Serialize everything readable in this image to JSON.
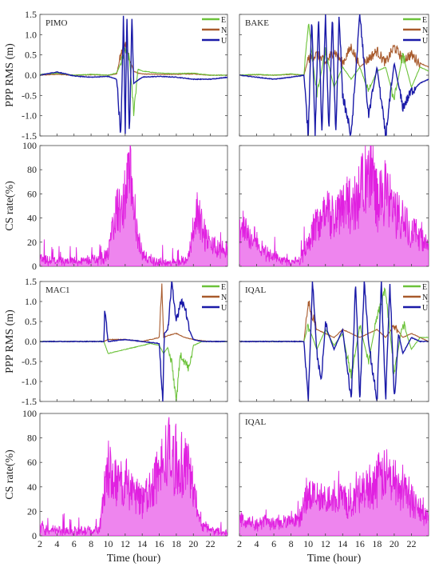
{
  "colors": {
    "E": "#6cc23a",
    "N": "#a85a2c",
    "U": "#1a1aa8",
    "CS": "#e020e0"
  },
  "labels": {
    "ppp_ylabel": "PPP RMS (m)",
    "cs_ylabel": "CS rate(%)",
    "xlabel": "Time (hour)"
  },
  "x_ticks": [
    "2",
    "4",
    "6",
    "8",
    "10",
    "12",
    "14",
    "16",
    "18",
    "20",
    "22"
  ],
  "ppp_ticks": [
    "1.5",
    "1.0",
    "0.5",
    "0.0",
    "-0.5",
    "-1.0",
    "-1.5"
  ],
  "cs_ticks": [
    "100",
    "80",
    "60",
    "40",
    "20",
    "0"
  ],
  "chart_data": [
    {
      "type": "line",
      "station": "PIMO",
      "ylabel": "PPP RMS (m)",
      "xlabel": "",
      "xlim": [
        2,
        24
      ],
      "ylim": [
        -1.5,
        1.5
      ],
      "legend": "top-right",
      "grid": false,
      "series": [
        {
          "name": "E",
          "x": [
            2,
            4,
            6,
            8,
            10,
            11,
            11.5,
            12,
            12.5,
            13,
            13.5,
            14,
            16,
            18,
            20,
            22,
            24
          ],
          "values": [
            0.02,
            0.05,
            0.0,
            0.02,
            0.0,
            0.05,
            0.3,
            0.6,
            0.4,
            -0.9,
            0.15,
            0.1,
            0.05,
            0.04,
            0.05,
            0.0,
            0.0
          ]
        },
        {
          "name": "N",
          "x": [
            2,
            4,
            6,
            8,
            10,
            11,
            11.5,
            12,
            12.5,
            13,
            13.5,
            14,
            16,
            18,
            20,
            22,
            24
          ],
          "values": [
            0.0,
            0.02,
            0.0,
            0.01,
            0.0,
            0.03,
            0.5,
            0.8,
            0.4,
            0.1,
            0.05,
            0.03,
            0.02,
            0.02,
            0.03,
            0.0,
            0.0
          ]
        },
        {
          "name": "U",
          "x": [
            2,
            4,
            6,
            8,
            10,
            11,
            11.5,
            11.8,
            12,
            12.2,
            12.5,
            12.8,
            13,
            14,
            16,
            18,
            20,
            22,
            24
          ],
          "values": [
            0.0,
            0.08,
            -0.02,
            -0.05,
            -0.03,
            -0.1,
            -1.5,
            1.5,
            -1.5,
            1.5,
            -1.5,
            1.5,
            -0.2,
            -0.05,
            -0.03,
            -0.05,
            -0.1,
            -0.1,
            -0.05
          ]
        }
      ]
    },
    {
      "type": "line",
      "station": "BAKE",
      "ylabel": "",
      "xlabel": "",
      "xlim": [
        2,
        24
      ],
      "ylim": [
        -1.5,
        1.5
      ],
      "legend": "top-right",
      "grid": false,
      "series": [
        {
          "name": "E",
          "x": [
            2,
            4,
            6,
            8,
            9.5,
            10,
            11,
            12,
            13,
            14,
            15,
            16,
            17,
            18,
            19,
            20,
            21,
            22,
            23,
            24
          ],
          "values": [
            0.0,
            0.02,
            0.0,
            0.03,
            0.0,
            1.3,
            -0.5,
            0.6,
            -0.3,
            0.2,
            -0.1,
            0.2,
            -0.4,
            0.1,
            0.2,
            -0.6,
            0.5,
            -0.3,
            0.2,
            0.1
          ]
        },
        {
          "name": "N",
          "x": [
            2,
            4,
            6,
            8,
            9.5,
            10,
            11,
            12,
            13,
            14,
            15,
            16,
            17,
            18,
            19,
            20,
            21,
            22,
            23,
            24
          ],
          "values": [
            0.0,
            0.01,
            0.0,
            0.02,
            0.0,
            0.4,
            0.5,
            0.3,
            0.6,
            0.3,
            0.7,
            0.2,
            0.4,
            0.6,
            0.3,
            0.7,
            0.4,
            0.5,
            0.3,
            0.2
          ]
        },
        {
          "name": "U",
          "x": [
            2,
            4,
            6,
            8,
            9.5,
            10,
            10.4,
            10.8,
            11.2,
            11.6,
            12,
            12.4,
            12.8,
            13.2,
            13.6,
            14,
            15,
            16,
            17,
            18,
            19,
            20,
            21,
            22,
            23,
            24
          ],
          "values": [
            0.0,
            -0.05,
            -0.1,
            -0.05,
            0.0,
            -1.5,
            1.5,
            -1.5,
            1.5,
            -1.5,
            1.5,
            -1.5,
            1.5,
            -1.5,
            1.5,
            -0.5,
            -1.5,
            1.5,
            -1.0,
            0.2,
            -1.5,
            0.3,
            -0.8,
            -0.4,
            -0.2,
            -0.1
          ]
        }
      ]
    },
    {
      "type": "area",
      "station": "PIMO",
      "ylabel": "CS rate(%)",
      "xlabel": "",
      "xlim": [
        2,
        24
      ],
      "ylim": [
        0,
        100
      ],
      "grid": false,
      "series": [
        {
          "name": "",
          "x": [
            2,
            3,
            4,
            5,
            6,
            7,
            8,
            9,
            10,
            10.5,
            11,
            11.5,
            12,
            12.5,
            13,
            13.5,
            14,
            15,
            16,
            17,
            18,
            19,
            19.5,
            20,
            20.5,
            21,
            22,
            23,
            24
          ],
          "values": [
            6,
            4,
            5,
            3,
            5,
            4,
            6,
            5,
            10,
            30,
            45,
            40,
            60,
            75,
            50,
            25,
            10,
            4,
            3,
            2,
            3,
            4,
            10,
            35,
            45,
            30,
            18,
            14,
            15
          ]
        }
      ]
    },
    {
      "type": "area",
      "station": "BAKE",
      "ylabel": "",
      "xlabel": "",
      "xlim": [
        2,
        24
      ],
      "ylim": [
        0,
        100
      ],
      "grid": false,
      "series": [
        {
          "name": "",
          "x": [
            2,
            3,
            4,
            5,
            6,
            7,
            8,
            9,
            10,
            11,
            12,
            13,
            14,
            15,
            16,
            16.5,
            17,
            17.5,
            18,
            19,
            20,
            21,
            22,
            23,
            24
          ],
          "values": [
            35,
            25,
            20,
            12,
            8,
            5,
            3,
            5,
            20,
            35,
            45,
            40,
            55,
            45,
            60,
            80,
            70,
            75,
            55,
            60,
            45,
            40,
            30,
            25,
            15
          ]
        }
      ]
    },
    {
      "type": "line",
      "station": "MAC1",
      "ylabel": "PPP RMS (m)",
      "xlabel": "",
      "xlim": [
        2,
        24
      ],
      "ylim": [
        -1.5,
        1.5
      ],
      "legend": "top-right",
      "grid": false,
      "series": [
        {
          "name": "E",
          "x": [
            2,
            4,
            6,
            8,
            9.5,
            10,
            12,
            14,
            15,
            16,
            16.5,
            17,
            17.5,
            18,
            18.5,
            19,
            19.5,
            20,
            21,
            22,
            24
          ],
          "values": [
            0.0,
            0.0,
            0.0,
            0.0,
            0.0,
            -0.3,
            -0.2,
            -0.1,
            -0.05,
            -0.1,
            -0.3,
            -0.15,
            -0.6,
            -1.5,
            -0.3,
            -0.5,
            -0.7,
            -0.1,
            0.0,
            0.0,
            0.0
          ]
        },
        {
          "name": "N",
          "x": [
            2,
            4,
            6,
            8,
            9.5,
            10,
            12,
            14,
            15,
            16,
            16.3,
            16.5,
            17,
            18,
            19,
            20,
            21,
            22,
            24
          ],
          "values": [
            0.0,
            0.0,
            0.0,
            0.0,
            0.0,
            0.05,
            0.05,
            0.0,
            0.05,
            0.1,
            1.5,
            0.1,
            0.15,
            0.2,
            0.1,
            0.05,
            0.02,
            0.0,
            0.0
          ]
        },
        {
          "name": "U",
          "x": [
            2,
            4,
            6,
            8,
            9.5,
            9.6,
            10,
            12,
            14,
            16,
            16.4,
            16.6,
            17,
            17.5,
            18,
            18.5,
            19,
            19.5,
            20,
            21,
            22,
            24
          ],
          "values": [
            0.0,
            0.0,
            0.0,
            0.0,
            0.0,
            0.75,
            0.0,
            0.05,
            0.0,
            -0.05,
            -1.5,
            0.2,
            0.3,
            1.5,
            0.5,
            1.0,
            0.9,
            0.3,
            0.05,
            0.0,
            0.0,
            0.0
          ]
        }
      ]
    },
    {
      "type": "line",
      "station": "IQAL",
      "ylabel": "",
      "xlabel": "",
      "xlim": [
        2,
        24
      ],
      "ylim": [
        -1.5,
        1.5
      ],
      "legend": "top-right",
      "grid": false,
      "series": [
        {
          "name": "E",
          "x": [
            2,
            4,
            6,
            8,
            9.5,
            10,
            11,
            12,
            13,
            14,
            15,
            16,
            17,
            18,
            19,
            20,
            21,
            22,
            23,
            24
          ],
          "values": [
            0.0,
            0.0,
            0.0,
            0.0,
            0.0,
            0.4,
            -0.2,
            0.3,
            -0.1,
            0.2,
            -0.9,
            0.4,
            -0.5,
            0.6,
            1.3,
            -0.8,
            0.5,
            -0.2,
            0.1,
            0.1
          ]
        },
        {
          "name": "N",
          "x": [
            2,
            4,
            6,
            8,
            9.5,
            10,
            11,
            12,
            13,
            14,
            15,
            16,
            17,
            18,
            19,
            20,
            21,
            22,
            23,
            24
          ],
          "values": [
            0.0,
            0.0,
            0.0,
            0.0,
            0.0,
            1.0,
            0.3,
            0.2,
            0.1,
            0.3,
            0.2,
            0.1,
            0.2,
            0.3,
            0.1,
            0.4,
            0.1,
            0.2,
            0.1,
            0.0
          ]
        },
        {
          "name": "U",
          "x": [
            2,
            4,
            6,
            8,
            9.5,
            10,
            10.5,
            11,
            11.5,
            12,
            13,
            14,
            15,
            15.5,
            16,
            16.5,
            17,
            18,
            18.5,
            19,
            19.5,
            20,
            20.5,
            21,
            22,
            23,
            24
          ],
          "values": [
            0.0,
            0.0,
            0.0,
            0.0,
            0.0,
            -1.5,
            1.5,
            -0.3,
            -1.0,
            0.4,
            -0.2,
            0.3,
            -1.5,
            1.5,
            -1.5,
            1.5,
            0.0,
            -1.5,
            1.5,
            -1.5,
            1.5,
            -1.5,
            0.2,
            -0.3,
            0.1,
            0.0,
            0.0
          ]
        }
      ]
    },
    {
      "type": "area",
      "station": "MAC1",
      "ylabel": "CS rate(%)",
      "xlabel": "Time (hour)",
      "xlim": [
        2,
        24
      ],
      "ylim": [
        0,
        100
      ],
      "grid": false,
      "series": [
        {
          "name": "",
          "x": [
            2,
            3,
            4,
            5,
            6,
            7,
            8,
            9,
            9.5,
            10,
            11,
            12,
            13,
            14,
            15,
            16,
            17,
            18,
            19,
            20,
            20.5,
            21,
            22,
            23,
            24
          ],
          "values": [
            8,
            5,
            4,
            4,
            3,
            4,
            4,
            5,
            30,
            55,
            45,
            40,
            35,
            30,
            40,
            50,
            70,
            55,
            60,
            40,
            20,
            10,
            5,
            3,
            2
          ]
        }
      ]
    },
    {
      "type": "area",
      "station": "IQAL",
      "ylabel": "",
      "xlabel": "Time (hour)",
      "xlim": [
        2,
        24
      ],
      "ylim": [
        0,
        100
      ],
      "grid": false,
      "series": [
        {
          "name": "",
          "x": [
            2,
            3,
            4,
            5,
            6,
            7,
            8,
            9,
            10,
            11,
            12,
            13,
            14,
            15,
            16,
            17,
            18,
            19,
            20,
            21,
            22,
            23,
            24
          ],
          "values": [
            15,
            12,
            10,
            12,
            10,
            12,
            10,
            12,
            35,
            30,
            28,
            35,
            30,
            25,
            35,
            40,
            45,
            50,
            45,
            40,
            30,
            20,
            15
          ]
        }
      ]
    }
  ]
}
